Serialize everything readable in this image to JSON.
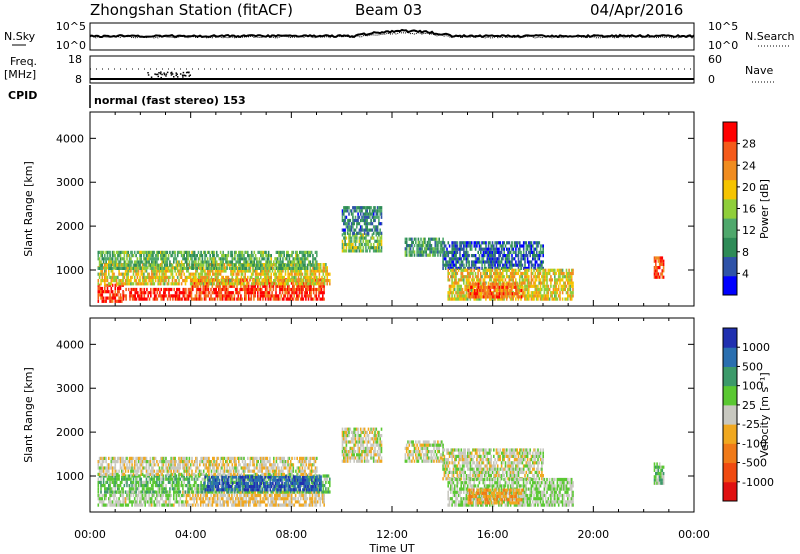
{
  "header": {
    "station": "Zhongshan Station (fitACF)",
    "beam": "Beam 03",
    "date": "04/Apr/2016",
    "mode": "normal (fast stereo) 153"
  },
  "params_panel": {
    "nsky_label": "N.Sky",
    "nsky_ticks": [
      "10^5",
      "10^0"
    ],
    "nsearch_label": "N.Search",
    "nsearch_ticks": [
      "10^5",
      "10^0"
    ],
    "freq_label": "Freq.",
    "freq_unit": "[MHz]",
    "freq_ticks": [
      "18",
      "8"
    ],
    "cpid_label": "CPID",
    "nave_label": "Nave",
    "nave_ticks": [
      "60",
      "0"
    ]
  },
  "colors": {
    "power_scale": [
      "#0000ff",
      "#2f53a8",
      "#2e8b57",
      "#4fa86c",
      "#8fce3a",
      "#f5c400",
      "#f08c1f",
      "#f55a1a",
      "#ff0000"
    ],
    "velocity_scale": [
      "#e01010",
      "#f04a10",
      "#f07a18",
      "#f0a820",
      "#c8c8c0",
      "#5ac832",
      "#3c9a6a",
      "#2a6fb0",
      "#2030b0"
    ]
  },
  "chart_data": [
    {
      "type": "heatmap",
      "name": "power",
      "xlabel": "Time UT",
      "ylabel": "Slant Range [km]",
      "x_ticks": [
        "00:00",
        "04:00",
        "08:00",
        "12:00",
        "16:00",
        "20:00",
        "00:00"
      ],
      "xlim_hours": [
        0,
        24
      ],
      "y_ticks": [
        1000,
        2000,
        3000,
        4000
      ],
      "ylim_km": [
        180,
        4600
      ],
      "colorbar": {
        "label": "Power [dB]",
        "ticks": [
          "4",
          "8",
          "12",
          "16",
          "20",
          "24",
          "28"
        ],
        "range": [
          0,
          30
        ]
      },
      "echo_regions": [
        {
          "t0": 0.3,
          "t1": 1.3,
          "r0": 250,
          "r1": 650,
          "level": 27
        },
        {
          "t0": 1.3,
          "t1": 4.0,
          "r0": 300,
          "r1": 580,
          "level": 28
        },
        {
          "t0": 4.0,
          "t1": 9.3,
          "r0": 300,
          "r1": 800,
          "level": 26
        },
        {
          "t0": 0.3,
          "t1": 9.5,
          "r0": 650,
          "r1": 1100,
          "level": 18
        },
        {
          "t0": 0.3,
          "t1": 9.0,
          "r0": 1000,
          "r1": 1400,
          "level": 12
        },
        {
          "t0": 10.0,
          "t1": 11.6,
          "r0": 1400,
          "r1": 1800,
          "level": 14
        },
        {
          "t0": 10.0,
          "t1": 11.6,
          "r0": 1800,
          "r1": 2400,
          "level": 8
        },
        {
          "t0": 12.5,
          "t1": 14.0,
          "r0": 1300,
          "r1": 1700,
          "level": 10
        },
        {
          "t0": 14.0,
          "t1": 18.0,
          "r0": 1000,
          "r1": 1600,
          "level": 6
        },
        {
          "t0": 14.2,
          "t1": 19.2,
          "r0": 300,
          "r1": 1000,
          "level": 18
        },
        {
          "t0": 15.0,
          "t1": 17.2,
          "r0": 350,
          "r1": 650,
          "level": 24
        },
        {
          "t0": 22.4,
          "t1": 22.8,
          "r0": 800,
          "r1": 1300,
          "level": 25
        }
      ]
    },
    {
      "type": "heatmap",
      "name": "velocity",
      "xlabel": "Time UT",
      "ylabel": "Slant Range [km]",
      "x_ticks": [
        "00:00",
        "04:00",
        "08:00",
        "12:00",
        "16:00",
        "20:00",
        "00:00"
      ],
      "xlim_hours": [
        0,
        24
      ],
      "y_ticks": [
        1000,
        2000,
        3000,
        4000
      ],
      "ylim_km": [
        180,
        4600
      ],
      "colorbar": {
        "label": "Velocity [m s⁻¹]",
        "ticks": [
          "-1000",
          "-500",
          "-100",
          "-25",
          "25",
          "100",
          "500",
          "1000"
        ],
        "range": [
          -1200,
          1200
        ]
      },
      "echo_regions": [
        {
          "t0": 0.3,
          "t1": 3.8,
          "r0": 300,
          "r1": 600,
          "level": 100
        },
        {
          "t0": 3.8,
          "t1": 9.3,
          "r0": 300,
          "r1": 650,
          "level": -150
        },
        {
          "t0": 0.3,
          "t1": 9.5,
          "r0": 600,
          "r1": 1000,
          "level": 300
        },
        {
          "t0": 4.5,
          "t1": 9.2,
          "r0": 650,
          "r1": 950,
          "level": 900
        },
        {
          "t0": 0.3,
          "t1": 9.0,
          "r0": 1000,
          "r1": 1400,
          "level": -50
        },
        {
          "t0": 10.0,
          "t1": 11.6,
          "r0": 1300,
          "r1": 2100,
          "level": 10
        },
        {
          "t0": 12.5,
          "t1": 14.0,
          "r0": 1300,
          "r1": 1800,
          "level": 10
        },
        {
          "t0": 14.0,
          "t1": 18.0,
          "r0": 900,
          "r1": 1600,
          "level": 5
        },
        {
          "t0": 14.2,
          "t1": 19.2,
          "r0": 300,
          "r1": 900,
          "level": 150
        },
        {
          "t0": 15.0,
          "t1": 17.2,
          "r0": 350,
          "r1": 650,
          "level": -300
        },
        {
          "t0": 22.4,
          "t1": 22.8,
          "r0": 800,
          "r1": 1300,
          "level": 300
        }
      ]
    }
  ]
}
